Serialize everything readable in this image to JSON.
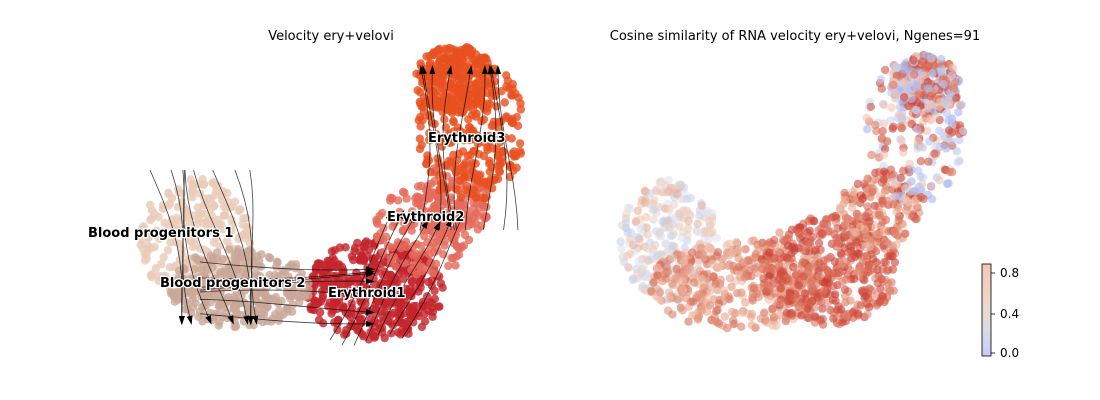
{
  "chart_data": [
    {
      "type": "scatter",
      "title": "Velocity ery+velovi",
      "grid": false,
      "axes_visible": false,
      "overlay": "velocity streamlines with arrowheads",
      "clusters": [
        {
          "name": "Blood progenitors 1",
          "color": "#e9cbb8"
        },
        {
          "name": "Blood progenitors 2",
          "color": "#c9a898"
        },
        {
          "name": "Erythroid1",
          "color": "#c4242c"
        },
        {
          "name": "Erythroid2",
          "color": "#e56a5b"
        },
        {
          "name": "Erythroid3",
          "color": "#e8501f"
        }
      ]
    },
    {
      "type": "scatter",
      "title": "Cosine similarity of RNA velocity ery+velovi, Ngenes=91",
      "grid": false,
      "axes_visible": false,
      "colormap": "coolwarm",
      "colorbar": {
        "ticks": [
          "0.0",
          "0.4",
          "0.8"
        ],
        "range": [
          0.0,
          0.9
        ]
      }
    }
  ]
}
